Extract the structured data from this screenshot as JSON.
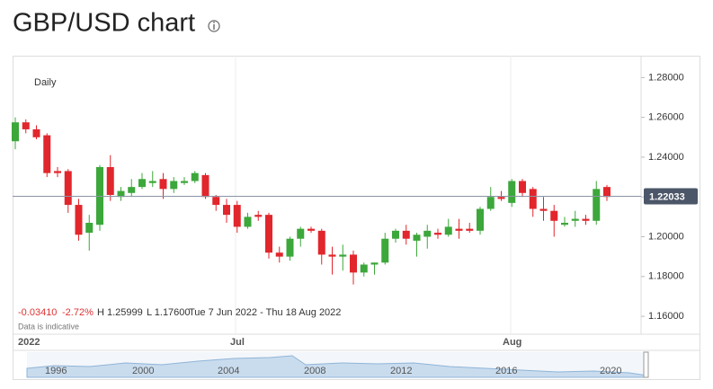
{
  "chart_data": {
    "type": "candlestick",
    "title": "GBP/USD chart",
    "interval": "Daily",
    "info": {
      "change": "-0.03410",
      "change_pct": "-2.72%",
      "high": "H 1.25999",
      "low": "L 1.17600",
      "range": "Tue 7 Jun 2022 - Thu 18 Aug 2022",
      "note": "Data is indicative"
    },
    "x_labels": [
      "2022",
      "Jul",
      "Aug"
    ],
    "navigator_labels": [
      "1996",
      "2000",
      "2004",
      "2008",
      "2012",
      "2016",
      "2020"
    ],
    "up_color": "#3ca73a",
    "down_color": "#e1262c",
    "current_price": 1.22033,
    "ylim": [
      1.151,
      1.291
    ],
    "yticks": [
      {
        "value": 1.16,
        "label": "1.16000"
      },
      {
        "value": 1.18,
        "label": "1.18000"
      },
      {
        "value": 1.2,
        "label": "1.20000"
      },
      {
        "value": 1.22,
        "label": "1.22000"
      },
      {
        "value": 1.24,
        "label": "1.24000"
      },
      {
        "value": 1.26,
        "label": "1.26000"
      },
      {
        "value": 1.28,
        "label": "1.28000"
      }
    ],
    "series": [
      {
        "name": "GBP/USD",
        "open": [
          1.248,
          1.2575,
          1.254,
          1.251,
          1.233,
          1.233,
          1.216,
          1.202,
          1.206,
          1.235,
          1.22,
          1.222,
          1.225,
          1.227,
          1.229,
          1.224,
          1.227,
          1.228,
          1.231,
          1.22,
          1.216,
          1.216,
          1.205,
          1.211,
          1.211,
          1.192,
          1.19,
          1.199,
          1.204,
          1.203,
          1.191,
          1.19,
          1.191,
          1.182,
          1.186,
          1.187,
          1.199,
          1.203,
          1.198,
          1.2,
          1.202,
          1.201,
          1.204,
          1.204,
          1.203,
          1.214,
          1.22,
          1.217,
          1.228,
          1.224,
          1.214,
          1.213,
          1.206,
          1.208,
          1.209,
          1.208,
          1.225
        ],
        "high": [
          1.26,
          1.259,
          1.256,
          1.252,
          1.235,
          1.234,
          1.219,
          1.211,
          1.236,
          1.241,
          1.225,
          1.229,
          1.232,
          1.233,
          1.232,
          1.23,
          1.23,
          1.233,
          1.232,
          1.221,
          1.219,
          1.218,
          1.212,
          1.213,
          1.212,
          1.195,
          1.2,
          1.205,
          1.205,
          1.204,
          1.195,
          1.196,
          1.193,
          1.187,
          1.187,
          1.202,
          1.204,
          1.206,
          1.202,
          1.206,
          1.204,
          1.209,
          1.209,
          1.207,
          1.215,
          1.225,
          1.223,
          1.229,
          1.229,
          1.225,
          1.22,
          1.216,
          1.21,
          1.213,
          1.211,
          1.228,
          1.226
        ],
        "low": [
          1.244,
          1.252,
          1.249,
          1.23,
          1.23,
          1.212,
          1.198,
          1.193,
          1.203,
          1.218,
          1.218,
          1.22,
          1.224,
          1.225,
          1.219,
          1.222,
          1.226,
          1.227,
          1.219,
          1.213,
          1.207,
          1.202,
          1.204,
          1.208,
          1.189,
          1.187,
          1.188,
          1.195,
          1.202,
          1.186,
          1.181,
          1.183,
          1.176,
          1.18,
          1.181,
          1.186,
          1.197,
          1.196,
          1.19,
          1.194,
          1.199,
          1.2,
          1.199,
          1.202,
          1.201,
          1.213,
          1.218,
          1.215,
          1.22,
          1.21,
          1.208,
          1.2,
          1.205,
          1.205,
          1.206,
          1.206,
          1.218
        ],
        "close": [
          1.2575,
          1.254,
          1.25,
          1.232,
          1.232,
          1.216,
          1.201,
          1.207,
          1.235,
          1.221,
          1.223,
          1.225,
          1.229,
          1.228,
          1.224,
          1.228,
          1.228,
          1.232,
          1.22,
          1.216,
          1.211,
          1.205,
          1.21,
          1.21,
          1.192,
          1.19,
          1.199,
          1.204,
          1.203,
          1.191,
          1.19,
          1.191,
          1.182,
          1.186,
          1.187,
          1.199,
          1.203,
          1.199,
          1.201,
          1.203,
          1.201,
          1.205,
          1.203,
          1.203,
          1.214,
          1.22,
          1.219,
          1.228,
          1.222,
          1.214,
          1.213,
          1.208,
          1.207,
          1.209,
          1.208,
          1.224,
          1.22
        ]
      }
    ]
  }
}
